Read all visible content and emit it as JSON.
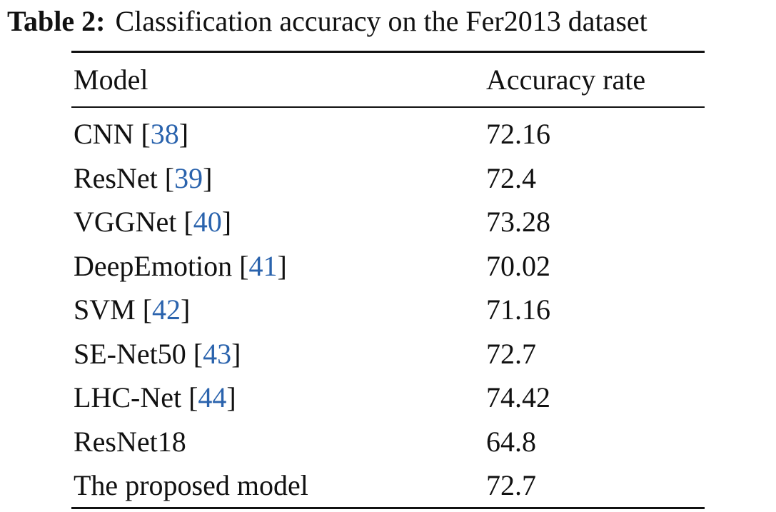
{
  "caption": {
    "label": "Table 2:",
    "text": "Classification accuracy on the Fer2013 dataset"
  },
  "table": {
    "brackets": [
      "[",
      "]"
    ],
    "header": [
      "Model",
      "Accuracy rate"
    ],
    "rows": [
      {
        "model": "CNN",
        "ref": "38",
        "accuracy": 72.16
      },
      {
        "model": "ResNet",
        "ref": "39",
        "accuracy": 72.4
      },
      {
        "model": "VGGNet",
        "ref": "40",
        "accuracy": 73.28
      },
      {
        "model": "DeepEmotion",
        "ref": "41",
        "accuracy": 70.02
      },
      {
        "model": "SVM",
        "ref": "42",
        "accuracy": 71.16
      },
      {
        "model": "SE-Net50",
        "ref": "43",
        "accuracy": 72.7
      },
      {
        "model": "LHC-Net",
        "ref": "44",
        "accuracy": 74.42
      },
      {
        "model": "ResNet18",
        "accuracy": 64.8
      },
      {
        "model": "The proposed model",
        "accuracy": 72.7
      }
    ]
  }
}
